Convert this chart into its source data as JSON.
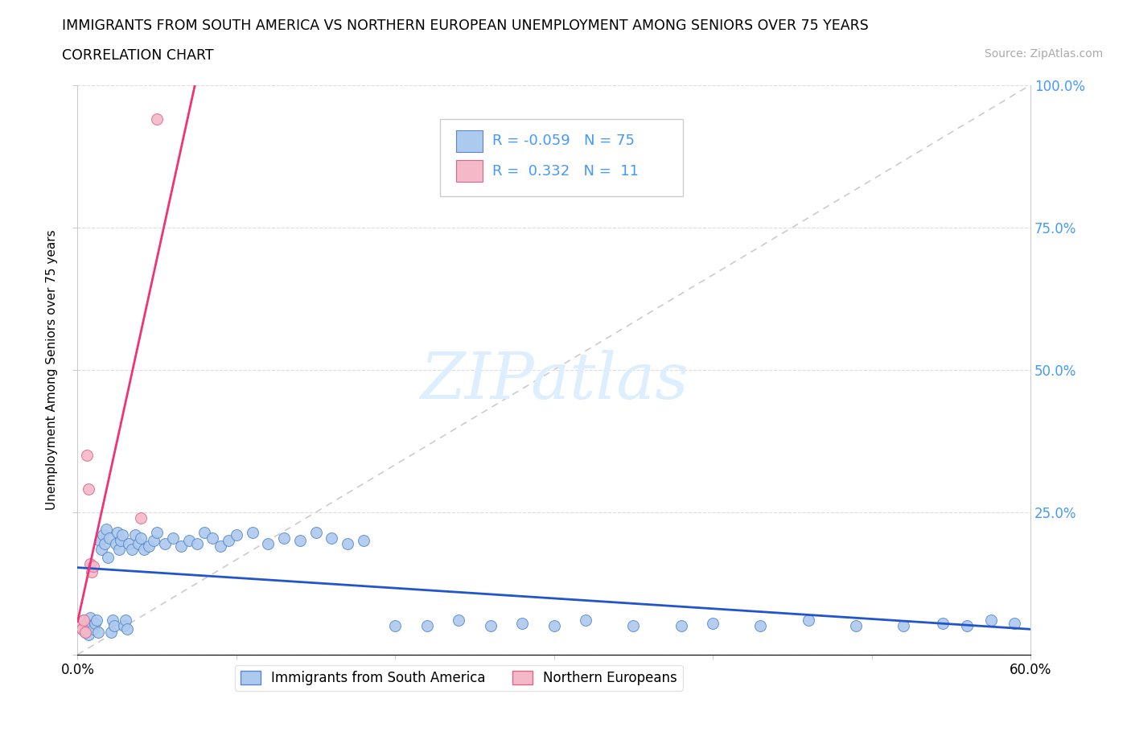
{
  "title": "IMMIGRANTS FROM SOUTH AMERICA VS NORTHERN EUROPEAN UNEMPLOYMENT AMONG SENIORS OVER 75 YEARS",
  "subtitle": "CORRELATION CHART",
  "source": "Source: ZipAtlas.com",
  "ylabel": "Unemployment Among Seniors over 75 years",
  "xlim": [
    0,
    0.6
  ],
  "ylim": [
    0,
    1.0
  ],
  "blue_color": "#adc9ee",
  "pink_color": "#f5b8c8",
  "blue_edge": "#5588cc",
  "pink_edge": "#dd6688",
  "trend_blue": "#2255cc",
  "trend_pink": "#ee3377",
  "ref_line_color": "#cccccc",
  "legend_R1": "-0.059",
  "legend_N1": "75",
  "legend_R2": "0.332",
  "legend_N2": "11",
  "watermark_color": "#ddeeff",
  "right_axis_color": "#4499ff",
  "blue_x": [
    0.002,
    0.003,
    0.004,
    0.005,
    0.006,
    0.007,
    0.008,
    0.009,
    0.01,
    0.011,
    0.012,
    0.013,
    0.014,
    0.015,
    0.016,
    0.017,
    0.018,
    0.019,
    0.02,
    0.021,
    0.022,
    0.023,
    0.024,
    0.025,
    0.026,
    0.027,
    0.028,
    0.029,
    0.03,
    0.031,
    0.032,
    0.034,
    0.036,
    0.038,
    0.04,
    0.042,
    0.045,
    0.048,
    0.05,
    0.055,
    0.06,
    0.065,
    0.07,
    0.075,
    0.08,
    0.085,
    0.09,
    0.095,
    0.1,
    0.11,
    0.12,
    0.13,
    0.14,
    0.15,
    0.16,
    0.17,
    0.18,
    0.2,
    0.22,
    0.24,
    0.26,
    0.28,
    0.3,
    0.32,
    0.35,
    0.38,
    0.4,
    0.43,
    0.46,
    0.49,
    0.52,
    0.545,
    0.56,
    0.575,
    0.59
  ],
  "blue_y": [
    0.05,
    0.045,
    0.06,
    0.04,
    0.055,
    0.035,
    0.065,
    0.05,
    0.045,
    0.055,
    0.06,
    0.04,
    0.2,
    0.185,
    0.21,
    0.195,
    0.22,
    0.17,
    0.205,
    0.04,
    0.06,
    0.05,
    0.195,
    0.215,
    0.185,
    0.2,
    0.21,
    0.05,
    0.06,
    0.045,
    0.195,
    0.185,
    0.21,
    0.195,
    0.205,
    0.185,
    0.19,
    0.2,
    0.215,
    0.195,
    0.205,
    0.19,
    0.2,
    0.195,
    0.215,
    0.205,
    0.19,
    0.2,
    0.21,
    0.215,
    0.195,
    0.205,
    0.2,
    0.215,
    0.205,
    0.195,
    0.2,
    0.05,
    0.05,
    0.06,
    0.05,
    0.055,
    0.05,
    0.06,
    0.05,
    0.05,
    0.055,
    0.05,
    0.06,
    0.05,
    0.05,
    0.055,
    0.05,
    0.06,
    0.055
  ],
  "pink_x": [
    0.002,
    0.003,
    0.004,
    0.005,
    0.006,
    0.007,
    0.008,
    0.009,
    0.01,
    0.04,
    0.05
  ],
  "pink_y": [
    0.05,
    0.045,
    0.06,
    0.04,
    0.35,
    0.29,
    0.16,
    0.145,
    0.155,
    0.24,
    0.94
  ]
}
